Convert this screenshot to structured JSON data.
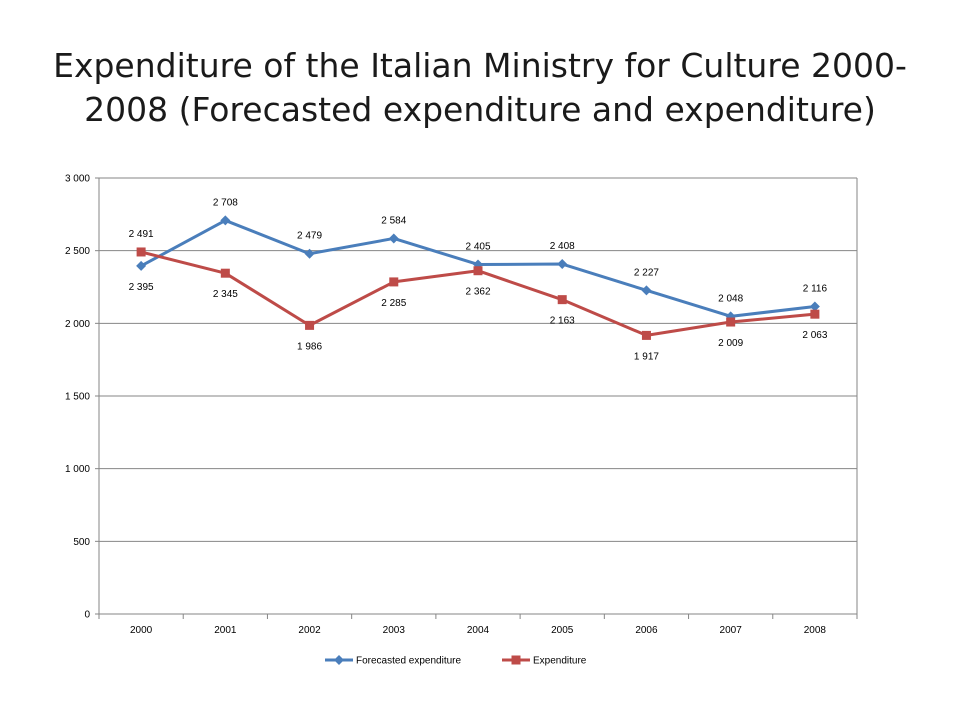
{
  "page": {
    "title": "Expenditure of the Italian Ministry for Culture 2000-2008 (Forecasted expenditure and expenditure)"
  },
  "chart_data": {
    "type": "line",
    "title": "Expenditure of the Italian Ministry for Culture 2000-2008 (Forecasted expenditure and expenditure)",
    "categories": [
      "2000",
      "2001",
      "2002",
      "2003",
      "2004",
      "2005",
      "2006",
      "2007",
      "2008"
    ],
    "ylim": [
      0,
      3000
    ],
    "yticks": [
      0,
      500,
      1000,
      1500,
      2000,
      2500,
      3000
    ],
    "ytick_labels": [
      "0",
      "500",
      "1 000",
      "1 500",
      "2 000",
      "2 500",
      "3 000"
    ],
    "grid": true,
    "legend_position": "bottom",
    "series": [
      {
        "name": "Forecasted expenditure",
        "color": "#4a7ebb",
        "marker": "diamond",
        "values": [
          2395,
          2708,
          2479,
          2584,
          2405,
          2408,
          2227,
          2048,
          2116
        ],
        "labels": [
          "2 395",
          "2 708",
          "2 479",
          "2 584",
          "2 405",
          "2 408",
          "2 227",
          "2 048",
          "2 116"
        ]
      },
      {
        "name": "Expenditure",
        "color": "#be4b48",
        "marker": "square",
        "values": [
          2491,
          2345,
          1986,
          2285,
          2362,
          2163,
          1917,
          2009,
          2063
        ],
        "labels": [
          "2 491",
          "2 345",
          "1 986",
          "2 285",
          "2 362",
          "2 163",
          "1 917",
          "2 009",
          "2 063"
        ]
      }
    ]
  }
}
